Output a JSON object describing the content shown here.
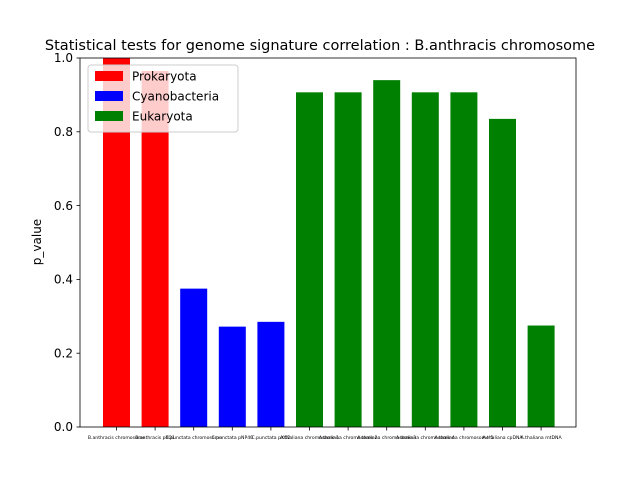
{
  "chart_data": {
    "type": "bar",
    "title": "Statistical tests for genome signature correlation : B.anthracis chromosome",
    "xlabel": "",
    "ylabel": "p_value",
    "ylim": [
      0.0,
      1.0
    ],
    "yticks": [
      "0.0",
      "0.2",
      "0.4",
      "0.6",
      "0.8",
      "1.0"
    ],
    "grid": false,
    "legend_position": "upper-left",
    "categories": [
      "B.anthracis chromosome",
      "B.anthracis pXO1",
      "C.punctata chromosome",
      "C.punctata pNP40",
      "C.punctata pXO2",
      "A.thaliana chromosome 1",
      "A.thaliana chromosome 2",
      "A.thaliana chromosome 3",
      "A.thaliana chromosome 4",
      "A.thaliana chromosome 5",
      "A.thaliana cpDNA",
      "A.thaliana mtDNA"
    ],
    "values": [
      1.0,
      0.965,
      0.375,
      0.272,
      0.285,
      0.907,
      0.907,
      0.94,
      0.907,
      0.907,
      0.835,
      0.275
    ],
    "groups": [
      0,
      0,
      1,
      1,
      1,
      2,
      2,
      2,
      2,
      2,
      2,
      2
    ],
    "series": [
      {
        "name": "Prokaryota",
        "color": "#ff0000"
      },
      {
        "name": "Cyanobacteria",
        "color": "#0000ff"
      },
      {
        "name": "Eukaryota",
        "color": "#008000"
      }
    ]
  }
}
